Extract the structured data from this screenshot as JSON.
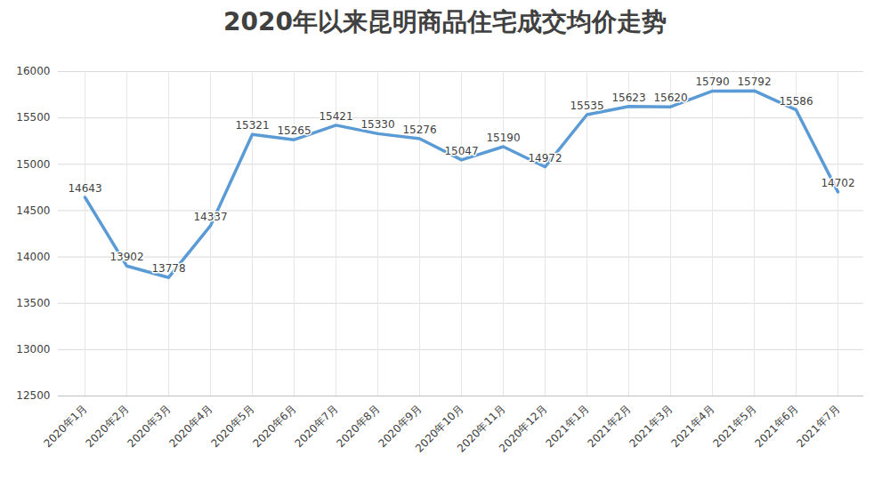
{
  "chart_data": {
    "type": "line",
    "title": "2020年以来昆明商品住宅成交均价走势",
    "categories": [
      "2020年1月",
      "2020年2月",
      "2020年3月",
      "2020年4月",
      "2020年5月",
      "2020年6月",
      "2020年7月",
      "2020年8月",
      "2020年9月",
      "2020年10月",
      "2020年11月",
      "2020年12月",
      "2021年1月",
      "2021年2月",
      "2021年3月",
      "2021年4月",
      "2021年5月",
      "2021年6月",
      "2021年7月"
    ],
    "values": [
      14643,
      13902,
      13778,
      14337,
      15321,
      15265,
      15421,
      15330,
      15276,
      15047,
      15190,
      14972,
      15535,
      15623,
      15620,
      15790,
      15792,
      15586,
      14702
    ],
    "color": "#5b9bd5",
    "ylim": [
      12500,
      16000
    ],
    "yticks": [
      12500,
      13000,
      13500,
      14000,
      14500,
      15000,
      15500,
      16000
    ],
    "grid": true,
    "data_labels": true
  }
}
